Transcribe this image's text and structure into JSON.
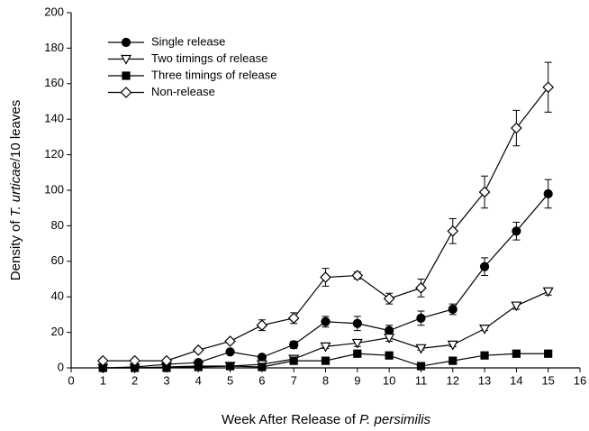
{
  "chart_data": {
    "type": "line",
    "xlabel": [
      "Week After Release of ",
      "P. persimilis"
    ],
    "ylabel": [
      "Density of ",
      "T. urticae",
      "/10 leaves"
    ],
    "x": [
      1,
      2,
      3,
      4,
      5,
      6,
      7,
      8,
      9,
      10,
      11,
      12,
      13,
      14,
      15
    ],
    "xlim": [
      0,
      16
    ],
    "xticks": [
      0,
      1,
      2,
      3,
      4,
      5,
      6,
      7,
      8,
      9,
      10,
      11,
      12,
      13,
      14,
      15,
      16
    ],
    "ylim": [
      0,
      200
    ],
    "yticks": [
      0,
      20,
      40,
      60,
      80,
      100,
      120,
      140,
      160,
      180,
      200
    ],
    "legend": "upper left",
    "series": [
      {
        "name": "Single release",
        "color": "#000000",
        "marker": "circle-filled",
        "values": [
          0,
          0.5,
          2,
          3,
          9,
          6,
          13,
          26,
          25,
          21,
          28,
          33,
          57,
          77,
          98
        ],
        "errors": [
          0,
          0,
          0,
          0,
          1,
          1,
          2,
          3,
          4,
          3,
          4,
          3,
          5,
          5,
          8
        ]
      },
      {
        "name": "Two timings of release",
        "color": "#000000",
        "marker": "triangle-down-open",
        "values": [
          0,
          0,
          0.5,
          1,
          1,
          2,
          5,
          12,
          14,
          17,
          11,
          13,
          22,
          35,
          43
        ],
        "errors": [
          0,
          0,
          0,
          0,
          0,
          0,
          1,
          1,
          2,
          2,
          1,
          1,
          1,
          2,
          2
        ]
      },
      {
        "name": "Three timings of release",
        "color": "#000000",
        "marker": "square-filled",
        "values": [
          0,
          0,
          0,
          0.5,
          1,
          0.5,
          4,
          4,
          8,
          7,
          1,
          4,
          7,
          8,
          8
        ],
        "errors": [
          0,
          0,
          0,
          0,
          0,
          0,
          1,
          1,
          1,
          1,
          0,
          1,
          1,
          1,
          1
        ]
      },
      {
        "name": "Non-release",
        "color": "#000000",
        "marker": "diamond-open",
        "values": [
          4,
          4,
          4,
          10,
          15,
          24,
          28,
          51,
          52,
          39,
          45,
          77,
          99,
          135,
          158
        ],
        "errors": [
          0,
          0,
          0,
          1,
          1,
          3,
          3,
          5,
          2,
          3,
          5,
          7,
          9,
          10,
          14
        ]
      }
    ]
  }
}
